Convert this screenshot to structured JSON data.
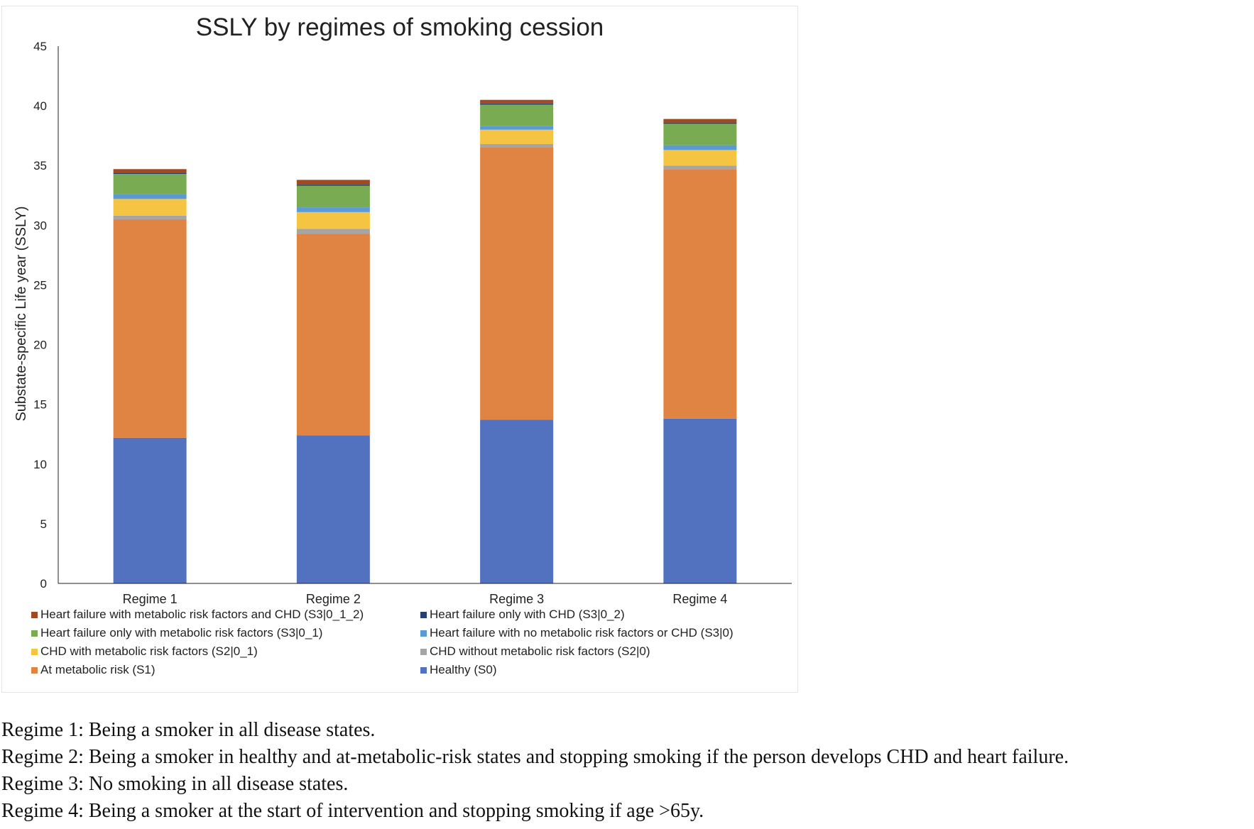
{
  "chart_data": {
    "type": "bar",
    "stacked": true,
    "title": "SSLY by regimes of smoking cession",
    "xlabel": "",
    "ylabel": "Substate-specific Life year (SSLY)",
    "ylim": [
      0,
      45
    ],
    "yticks": [
      0,
      5,
      10,
      15,
      20,
      25,
      30,
      35,
      40,
      45
    ],
    "categories": [
      "Regime 1",
      "Regime 2",
      "Regime 3",
      "Regime 4"
    ],
    "legend_position": "bottom",
    "series": [
      {
        "name": "Healthy (S0)",
        "color": "#5271BE",
        "values": [
          12.2,
          12.4,
          13.7,
          13.8
        ]
      },
      {
        "name": "At metabolic risk (S1)",
        "color": "#E08444",
        "values": [
          18.3,
          16.9,
          22.8,
          20.9
        ]
      },
      {
        "name": "CHD without metabolic risk factors (S2|0)",
        "color": "#A5A5A5",
        "values": [
          0.3,
          0.4,
          0.3,
          0.3
        ]
      },
      {
        "name": "CHD with metabolic risk factors (S2|0_1)",
        "color": "#F6C443",
        "values": [
          1.4,
          1.4,
          1.2,
          1.3
        ]
      },
      {
        "name": "Heart failure with no metabolic risk factors or CHD (S3|0)",
        "color": "#5B9BD5",
        "values": [
          0.4,
          0.4,
          0.3,
          0.4
        ]
      },
      {
        "name": "Heart failure only with metabolic risk factors (S3|0_1)",
        "color": "#78AB52",
        "values": [
          1.7,
          1.8,
          1.8,
          1.8
        ]
      },
      {
        "name": "Heart failure only with CHD (S3|0_2)",
        "color": "#26416F",
        "values": [
          0.1,
          0.1,
          0.1,
          0.1
        ]
      },
      {
        "name": "Heart failure with metabolic risk factors and CHD (S3|0_1_2)",
        "color": "#9E4B23",
        "values": [
          0.3,
          0.4,
          0.3,
          0.3
        ]
      }
    ]
  },
  "legend": {
    "items": [
      {
        "label": "Heart failure with metabolic risk factors and CHD (S3|0_1_2)",
        "color": "#9E4B23"
      },
      {
        "label": "Heart failure only with CHD (S3|0_2)",
        "color": "#26416F"
      },
      {
        "label": "Heart failure only with metabolic risk factors (S3|0_1)",
        "color": "#78AB52"
      },
      {
        "label": "Heart failure with no metabolic risk factors or CHD (S3|0)",
        "color": "#5B9BD5"
      },
      {
        "label": "CHD with metabolic risk factors (S2|0_1)",
        "color": "#F6C443"
      },
      {
        "label": "CHD without metabolic risk factors (S2|0)",
        "color": "#A5A5A5"
      },
      {
        "label": "At metabolic risk (S1)",
        "color": "#E08444"
      },
      {
        "label": "Healthy (S0)",
        "color": "#5271BE"
      }
    ]
  },
  "notes": [
    "Regime 1: Being a smoker in all disease states.",
    "Regime 2: Being a smoker in healthy and at-metabolic-risk states and stopping smoking if the person develops CHD and heart failure.",
    "Regime 3: No smoking in all disease states.",
    "Regime 4: Being a smoker at the start of intervention and stopping smoking if age >65y."
  ]
}
